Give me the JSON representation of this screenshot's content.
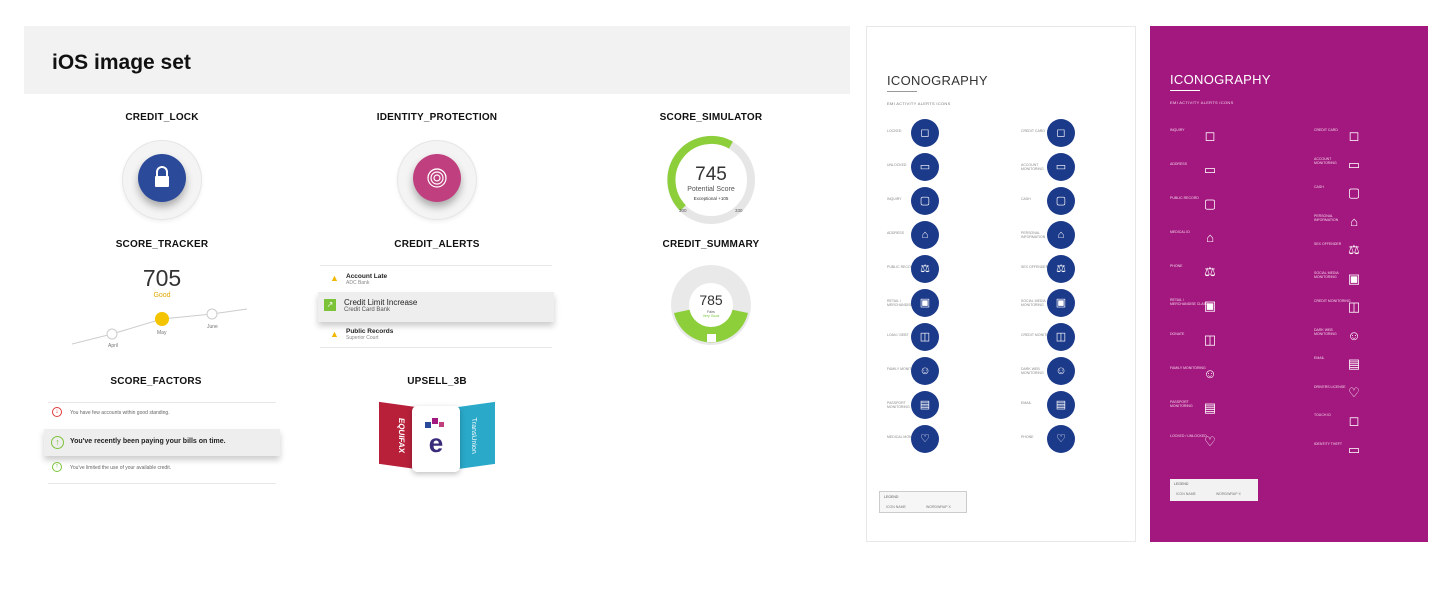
{
  "page": {
    "title": "iOS image set"
  },
  "tiles": {
    "credit_lock": "CREDIT_LOCK",
    "identity_protection": "IDENTITY_PROTECTION",
    "score_simulator": "SCORE_SIMULATOR",
    "score_tracker": "SCORE_TRACKER",
    "credit_alerts": "CREDIT_ALERTS",
    "credit_summary": "CREDIT_SUMMARY",
    "score_factors": "SCORE_FACTORS",
    "upsell_3b": "UPSELL_3B"
  },
  "score_simulator": {
    "score": "745",
    "label": "Potential Score",
    "change": "Exceptional +105",
    "min": "300",
    "max": "330"
  },
  "score_tracker": {
    "score": "705",
    "rating": "Good",
    "months": [
      "April",
      "May",
      "June"
    ]
  },
  "credit_alerts": {
    "items": [
      {
        "title": "Account Late",
        "sub": "ADC Bank"
      },
      {
        "title": "Credit Limit Increase",
        "sub": "Credit Card Bank"
      },
      {
        "title": "Public Records",
        "sub": "Superior Court"
      }
    ]
  },
  "credit_summary": {
    "score": "785",
    "label": "Fairs",
    "rating": "Very Good"
  },
  "score_factors": {
    "items": [
      "You have few accounts within good standing.",
      "You've recently been paying your bills on time.",
      "You've limited the use of your available credit."
    ]
  },
  "upsell_3b": {
    "bureaus": [
      "EQUIFAX",
      "TransUnion"
    ],
    "center": "e"
  },
  "iconography": {
    "title": "ICONOGRAPHY",
    "subtitle": "EMI ACTIVITY ALERTS ICONS",
    "legend": {
      "title": "LEGEND",
      "a": "ICON NAME",
      "b": "WORDWRAP X"
    },
    "left_col": [
      "LOCKED",
      "UNLOCKED",
      "INQUIRY",
      "ADDRESS",
      "PUBLIC RECORD",
      "RETAIL / MERCHANDISE CLAIM",
      "LOAN / DEBT",
      "FAMILY MONITORING",
      "PASSPORT MONITORING",
      "MEDICAL MONITORING"
    ],
    "right_col": [
      "CREDIT CARD",
      "ACCOUNT MONITORING",
      "CASH",
      "PERSONAL INFORMATION",
      "SEX OFFENDER",
      "SOCIAL MEDIA MONITORING",
      "CREDIT MONITORING",
      "DARK WEB MONITORING",
      "EMAIL",
      "PHONE"
    ],
    "purple_left": [
      "INQUIRY",
      "ADDRESS",
      "PUBLIC RECORD",
      "MEDICAL ID",
      "PHONE",
      "RETAIL / MERCHANDISE CLAIM",
      "DONATE",
      "FAMILY MONITORING",
      "PASSPORT MONITORING",
      "LOCKED / UNLOCKED"
    ],
    "purple_right": [
      "CREDIT CARD",
      "ACCOUNT MONITORING",
      "CASH",
      "PERSONAL INFORMATION",
      "SEX OFFENDER",
      "SOCIAL MEDIA MONITORING",
      "CREDIT MONITORING",
      "DARK WEB MONITORING",
      "EMAIL",
      "DRIVERS LICENSE",
      "TOUCH ID",
      "IDENTITY THEFT"
    ],
    "colors": {
      "navy": "#1c3a8a",
      "magenta": "#a3187f"
    }
  }
}
